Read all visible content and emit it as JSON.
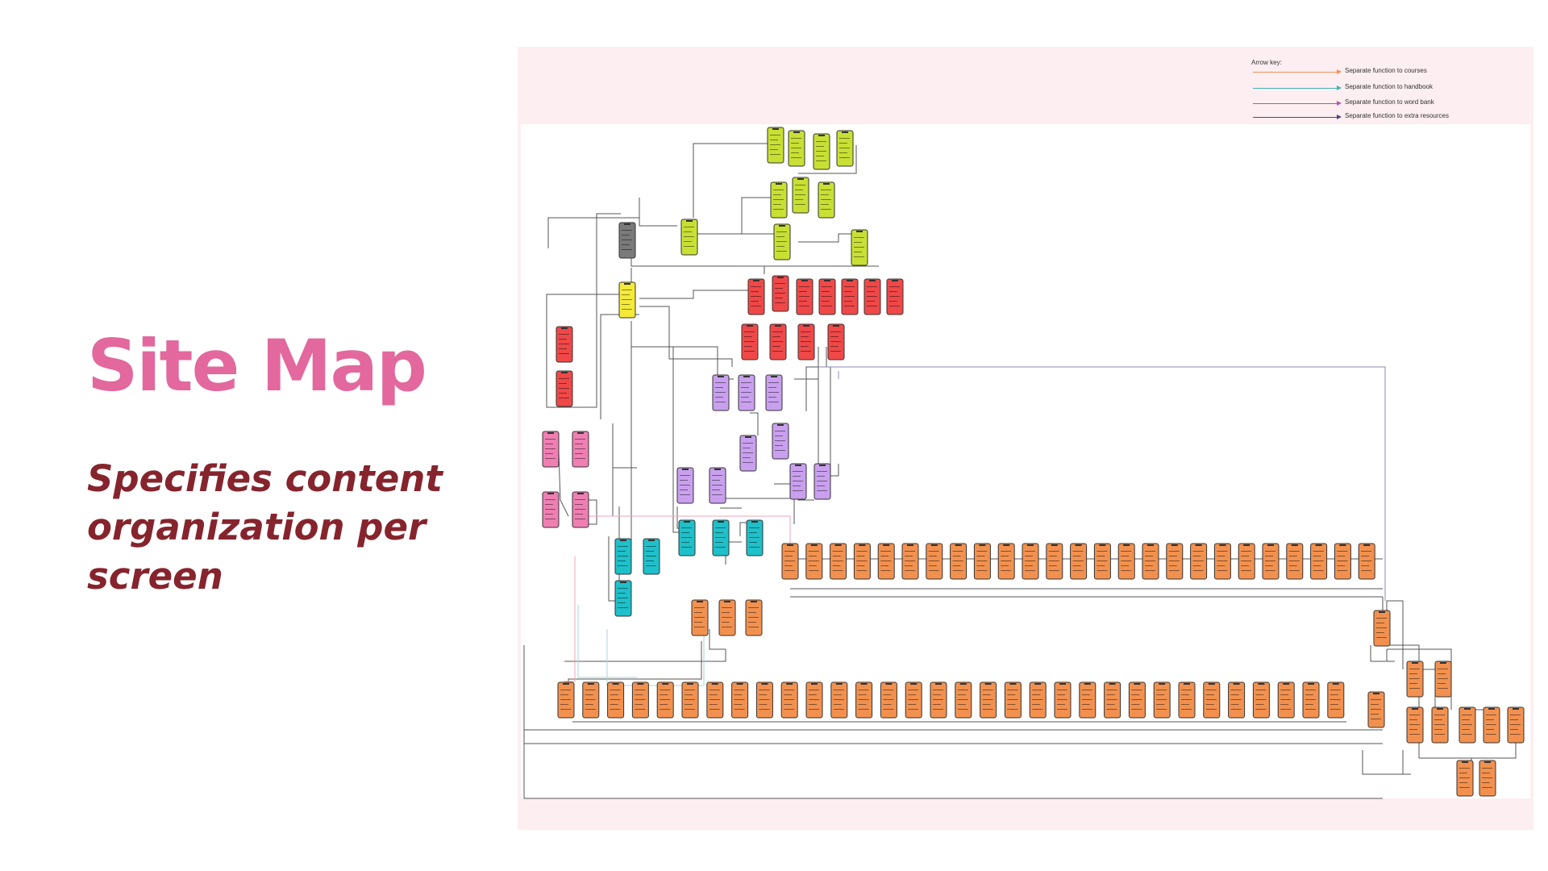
{
  "slide": {
    "title": "Site Map",
    "subtitle": "Specifies content organization per screen"
  },
  "legend": {
    "title": "Arrow key:",
    "items": [
      {
        "label": "Separate function to courses",
        "color": "#f2915a"
      },
      {
        "label": "Separate function to handbook",
        "color": "#3fb3b3"
      },
      {
        "label": "Separate function to word bank",
        "color": "#b35aa6"
      },
      {
        "label": "Separate function to extra resources",
        "color": "#5a3f8c"
      }
    ]
  },
  "palette": {
    "home": "#c8e034",
    "splash": "#7a7a7a",
    "menu": "#f5ea3a",
    "account": "#f04848",
    "purple": "#c9a0ee",
    "pink": "#ef7fb3",
    "teal": "#1ec0c9",
    "course": "#f2914f"
  }
}
